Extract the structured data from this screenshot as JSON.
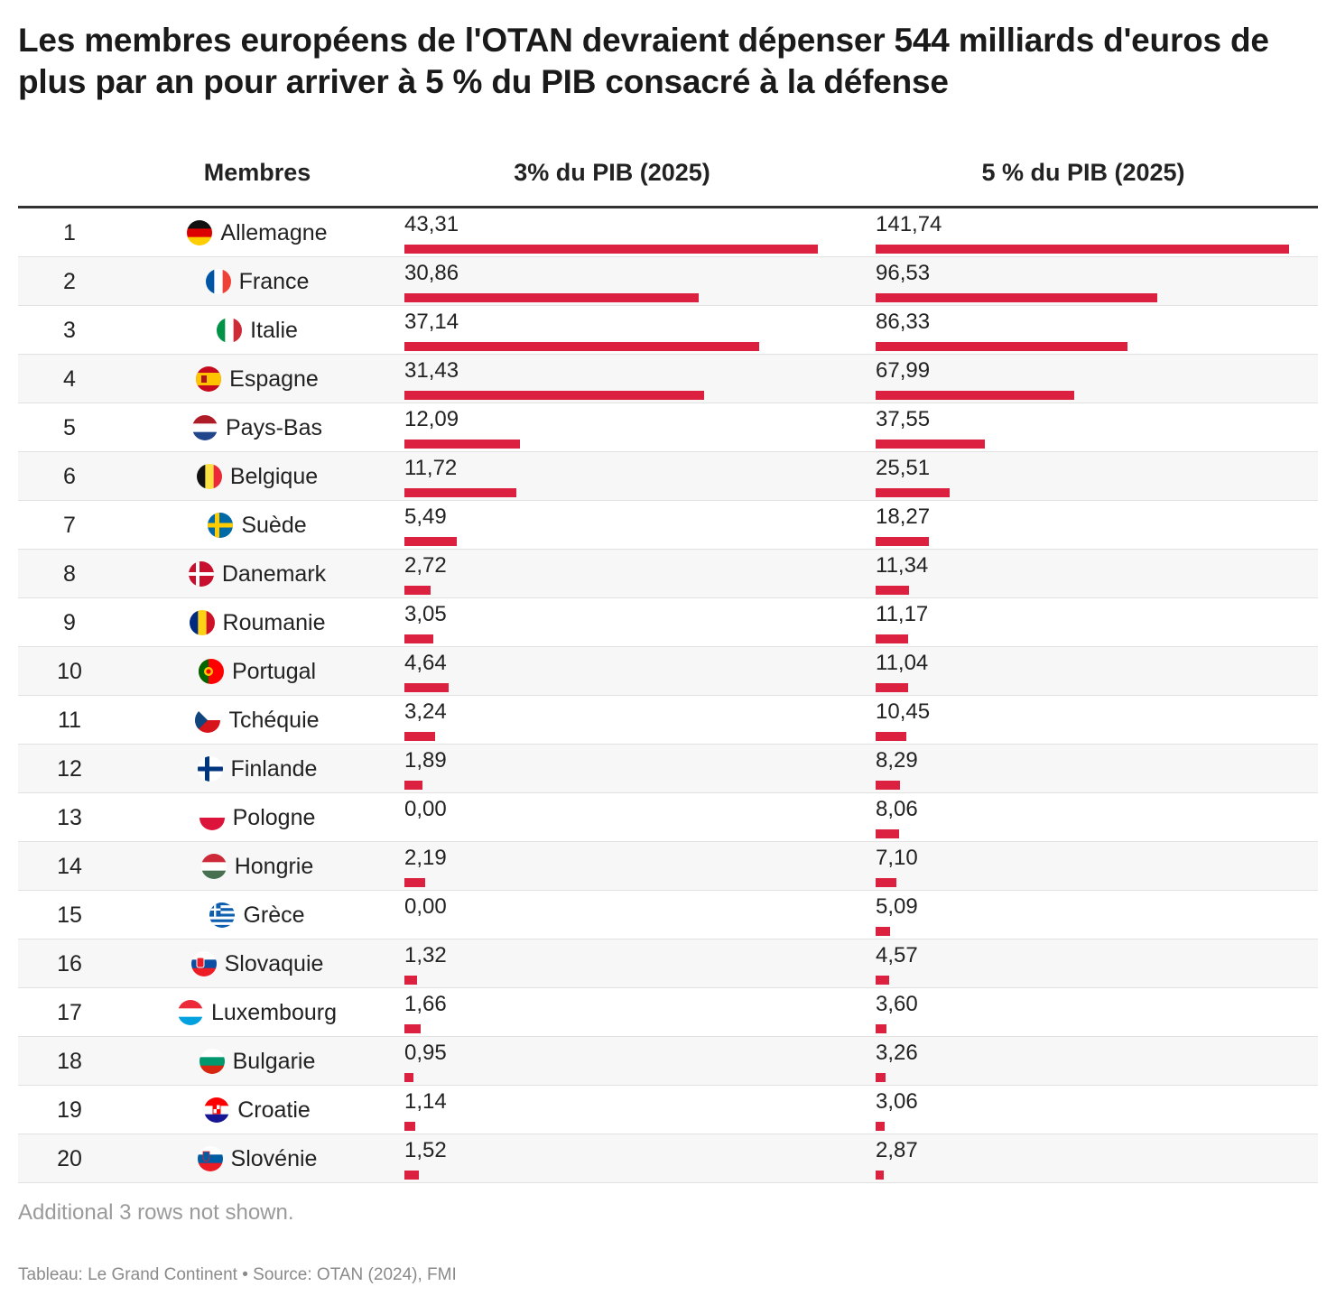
{
  "title": "Les membres européens de l'OTAN devraient dépenser 544 milliards d'euros de plus par an pour arriver à 5 % du PIB consacré à la défense",
  "colors": {
    "bar": "#dc2140",
    "header_rule": "#333333",
    "alt_row": "#f7f7f7"
  },
  "chart_data": {
    "type": "table",
    "title": "Les membres européens de l'OTAN devraient dépenser 544 milliards d'euros de plus par an pour arriver à 5 % du PIB consacré à la défense",
    "columns": [
      "",
      "Membres",
      "3% du PIB (2025)",
      "5 % du PIB (2025)"
    ],
    "column_max": [
      43.31,
      141.74
    ],
    "rows": [
      {
        "rank": "1",
        "member": "Allemagne",
        "flag": "germany-flag-icon",
        "c1": 43.31,
        "c1_label": "43,31",
        "c2": 141.74,
        "c2_label": "141,74"
      },
      {
        "rank": "2",
        "member": "France",
        "flag": "france-flag-icon",
        "c1": 30.86,
        "c1_label": "30,86",
        "c2": 96.53,
        "c2_label": "96,53"
      },
      {
        "rank": "3",
        "member": "Italie",
        "flag": "italy-flag-icon",
        "c1": 37.14,
        "c1_label": "37,14",
        "c2": 86.33,
        "c2_label": "86,33"
      },
      {
        "rank": "4",
        "member": "Espagne",
        "flag": "spain-flag-icon",
        "c1": 31.43,
        "c1_label": "31,43",
        "c2": 67.99,
        "c2_label": "67,99"
      },
      {
        "rank": "5",
        "member": "Pays-Bas",
        "flag": "netherlands-flag-icon",
        "c1": 12.09,
        "c1_label": "12,09",
        "c2": 37.55,
        "c2_label": "37,55"
      },
      {
        "rank": "6",
        "member": "Belgique",
        "flag": "belgium-flag-icon",
        "c1": 11.72,
        "c1_label": "11,72",
        "c2": 25.51,
        "c2_label": "25,51"
      },
      {
        "rank": "7",
        "member": "Suède",
        "flag": "sweden-flag-icon",
        "c1": 5.49,
        "c1_label": "5,49",
        "c2": 18.27,
        "c2_label": "18,27"
      },
      {
        "rank": "8",
        "member": "Danemark",
        "flag": "denmark-flag-icon",
        "c1": 2.72,
        "c1_label": "2,72",
        "c2": 11.34,
        "c2_label": "11,34"
      },
      {
        "rank": "9",
        "member": "Roumanie",
        "flag": "romania-flag-icon",
        "c1": 3.05,
        "c1_label": "3,05",
        "c2": 11.17,
        "c2_label": "11,17"
      },
      {
        "rank": "10",
        "member": "Portugal",
        "flag": "portugal-flag-icon",
        "c1": 4.64,
        "c1_label": "4,64",
        "c2": 11.04,
        "c2_label": "11,04"
      },
      {
        "rank": "11",
        "member": "Tchéquie",
        "flag": "czechia-flag-icon",
        "c1": 3.24,
        "c1_label": "3,24",
        "c2": 10.45,
        "c2_label": "10,45"
      },
      {
        "rank": "12",
        "member": "Finlande",
        "flag": "finland-flag-icon",
        "c1": 1.89,
        "c1_label": "1,89",
        "c2": 8.29,
        "c2_label": "8,29"
      },
      {
        "rank": "13",
        "member": "Pologne",
        "flag": "poland-flag-icon",
        "c1": 0.0,
        "c1_label": "0,00",
        "c2": 8.06,
        "c2_label": "8,06"
      },
      {
        "rank": "14",
        "member": "Hongrie",
        "flag": "hungary-flag-icon",
        "c1": 2.19,
        "c1_label": "2,19",
        "c2": 7.1,
        "c2_label": "7,10"
      },
      {
        "rank": "15",
        "member": "Grèce",
        "flag": "greece-flag-icon",
        "c1": 0.0,
        "c1_label": "0,00",
        "c2": 5.09,
        "c2_label": "5,09"
      },
      {
        "rank": "16",
        "member": "Slovaquie",
        "flag": "slovakia-flag-icon",
        "c1": 1.32,
        "c1_label": "1,32",
        "c2": 4.57,
        "c2_label": "4,57"
      },
      {
        "rank": "17",
        "member": "Luxembourg",
        "flag": "luxembourg-flag-icon",
        "c1": 1.66,
        "c1_label": "1,66",
        "c2": 3.6,
        "c2_label": "3,60"
      },
      {
        "rank": "18",
        "member": "Bulgarie",
        "flag": "bulgaria-flag-icon",
        "c1": 0.95,
        "c1_label": "0,95",
        "c2": 3.26,
        "c2_label": "3,26"
      },
      {
        "rank": "19",
        "member": "Croatie",
        "flag": "croatia-flag-icon",
        "c1": 1.14,
        "c1_label": "1,14",
        "c2": 3.06,
        "c2_label": "3,06"
      },
      {
        "rank": "20",
        "member": "Slovénie",
        "flag": "slovenia-flag-icon",
        "c1": 1.52,
        "c1_label": "1,52",
        "c2": 2.87,
        "c2_label": "2,87"
      }
    ]
  },
  "footer": {
    "note": "Additional 3 rows not shown.",
    "source": "Tableau: Le Grand Continent • Source: OTAN (2024), FMI"
  }
}
